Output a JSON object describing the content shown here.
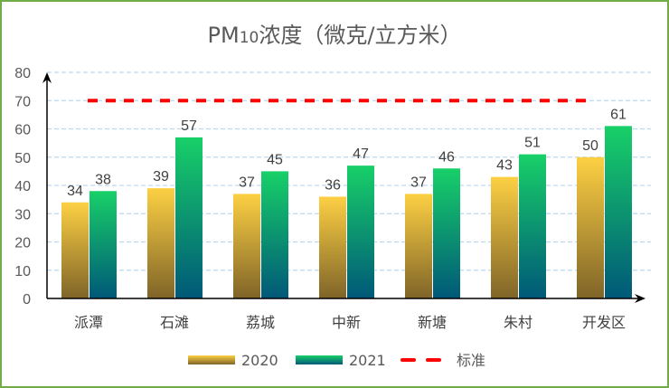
{
  "chart_data": {
    "type": "bar",
    "title": "PM10浓度（微克/立方米）",
    "title_parts": {
      "prefix": "PM",
      "subscript": "10",
      "rest": "浓度（微克/立方米）"
    },
    "categories": [
      "派潭",
      "石滩",
      "荔城",
      "中新",
      "新塘",
      "朱村",
      "开发区"
    ],
    "series": [
      {
        "name": "2020",
        "values": [
          34,
          39,
          37,
          36,
          37,
          43,
          50
        ],
        "color_top": "#fdd043",
        "color_bottom": "#7f6428"
      },
      {
        "name": "2021",
        "values": [
          38,
          57,
          45,
          47,
          46,
          51,
          61
        ],
        "color_top": "#18d068",
        "color_bottom": "#005878"
      }
    ],
    "reference_line": {
      "name": "标准",
      "value": 70,
      "color": "#ff0000",
      "style": "dashed"
    },
    "ylim": [
      0,
      80
    ],
    "yticks": [
      0,
      10,
      20,
      30,
      40,
      50,
      60,
      70,
      80
    ],
    "grid": true,
    "legend_position": "bottom",
    "border_color": "#70ad47"
  }
}
